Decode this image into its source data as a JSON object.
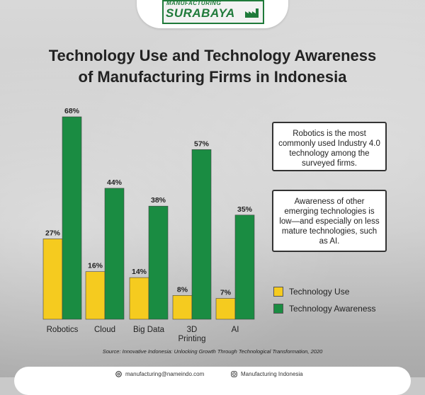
{
  "logo": {
    "top_text": "MANUFACTURING",
    "main_text": "SURABAYA",
    "icon": "factory-icon"
  },
  "title": {
    "line1": "Technology Use and Technology Awareness",
    "line2": "of Manufacturing Firms in Indonesia"
  },
  "colors": {
    "use": "#f5cb1f",
    "awareness": "#1a8c42",
    "text": "#222222"
  },
  "chart_data": {
    "type": "bar",
    "title": "Technology Use and Technology Awareness of Manufacturing Firms in Indonesia",
    "categories": [
      "Robotics",
      "Cloud",
      "Big Data",
      "3D Printing",
      "AI"
    ],
    "category_lines": [
      [
        "Robotics"
      ],
      [
        "Cloud"
      ],
      [
        "Big Data"
      ],
      [
        "3D",
        "Printing"
      ],
      [
        "AI"
      ]
    ],
    "series": [
      {
        "name": "Technology Use",
        "values": [
          27,
          16,
          14,
          8,
          7
        ],
        "labels": [
          "27%",
          "16%",
          "14%",
          "8%",
          "7%"
        ],
        "color": "#f5cb1f"
      },
      {
        "name": "Technology Awareness",
        "values": [
          68,
          44,
          38,
          57,
          35
        ],
        "labels": [
          "68%",
          "44%",
          "38%",
          "57%",
          "35%"
        ],
        "color": "#1a8c42"
      }
    ],
    "ylim": [
      0,
      68
    ],
    "grid": false,
    "legend_position": "right"
  },
  "notes": {
    "note1": "Robotics is the most commonly used Industry 4.0 technology among the surveyed firms.",
    "note2": "Awareness of other emerging technologies is low—and especially on less mature technologies, such as AI."
  },
  "legend": {
    "use_label": "Technology Use",
    "awareness_label": "Technology Awareness"
  },
  "source": "Source: Innovative Indonesia: Unlocking Growth Through Technological Transformation, 2020",
  "footer": {
    "email": "manufacturing@nameindo.com",
    "email_icon": "mail-icon",
    "social": "Manufacturing Indonesia",
    "social_icon": "instagram-icon"
  }
}
